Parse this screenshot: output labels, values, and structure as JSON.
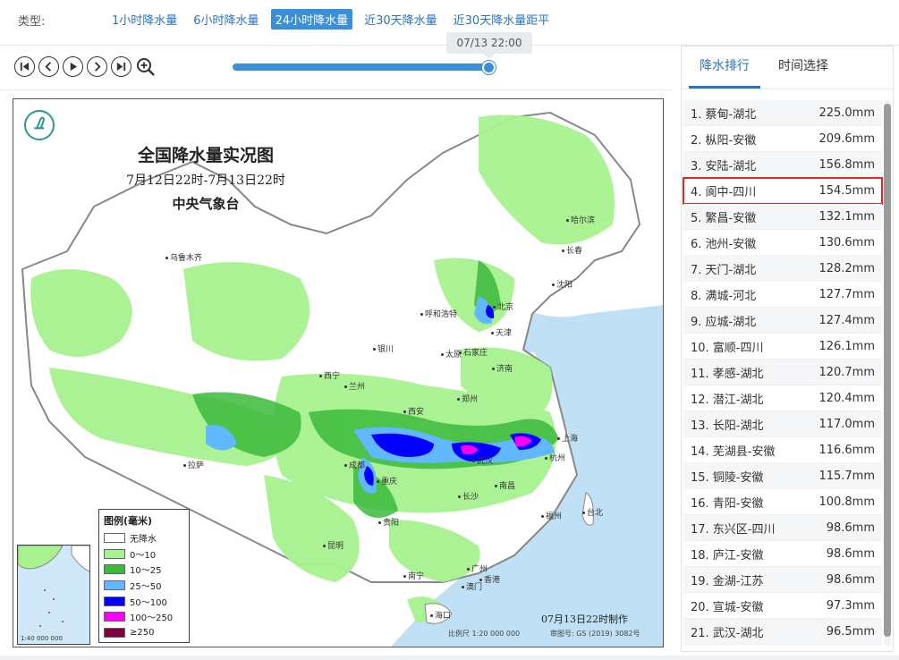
{
  "type_bar": {
    "label": "类型:",
    "tabs": [
      {
        "label": "1小时降水量",
        "active": false
      },
      {
        "label": "6小时降水量",
        "active": false
      },
      {
        "label": "24小时降水量",
        "active": true
      },
      {
        "label": "近30天降水量",
        "active": false
      },
      {
        "label": "近30天降水量距平",
        "active": false
      }
    ]
  },
  "player": {
    "controls": [
      "first-frame-icon",
      "prev-icon",
      "play-icon",
      "next-icon",
      "last-frame-icon",
      "zoom-in-icon"
    ],
    "time_tip": "07/13 22:00",
    "progress": 1.0
  },
  "map": {
    "title": "全国降水量实况图",
    "subtitle": "7月12日22时-7月13日22时",
    "org": "中央气象台",
    "cities": [
      {
        "name": "乌鲁木齐"
      },
      {
        "name": "哈尔滨"
      },
      {
        "name": "长春"
      },
      {
        "name": "沈阳"
      },
      {
        "name": "呼和浩特"
      },
      {
        "name": "北京"
      },
      {
        "name": "天津"
      },
      {
        "name": "石家庄"
      },
      {
        "name": "太原"
      },
      {
        "name": "济南"
      },
      {
        "name": "银川"
      },
      {
        "name": "西宁"
      },
      {
        "name": "兰州"
      },
      {
        "name": "郑州"
      },
      {
        "name": "西安"
      },
      {
        "name": "上海"
      },
      {
        "name": "拉萨"
      },
      {
        "name": "成都"
      },
      {
        "name": "重庆"
      },
      {
        "name": "武汉"
      },
      {
        "name": "杭州"
      },
      {
        "name": "长沙"
      },
      {
        "name": "南昌"
      },
      {
        "name": "福州"
      },
      {
        "name": "台北"
      },
      {
        "name": "贵阳"
      },
      {
        "name": "昆明"
      },
      {
        "name": "南宁"
      },
      {
        "name": "广州"
      },
      {
        "name": "香港"
      },
      {
        "name": "澳门"
      },
      {
        "name": "海口"
      }
    ],
    "legend": {
      "title": "图例(毫米)",
      "items": [
        {
          "label": "无降水",
          "color": "#ffffff"
        },
        {
          "label": "0～10",
          "color": "#a6f28f"
        },
        {
          "label": "10～25",
          "color": "#3dba3d"
        },
        {
          "label": "25～50",
          "color": "#61b8ff"
        },
        {
          "label": "50～100",
          "color": "#0000ff"
        },
        {
          "label": "100～250",
          "color": "#fa00fa"
        },
        {
          "label": "≥250",
          "color": "#800040"
        }
      ]
    },
    "inset_label": "1:40 000 000",
    "made_time": "07月13日22时制作",
    "scale": "比例尺 1:20 000 000",
    "approval": "审图号: GS (2019) 3082号"
  },
  "panel": {
    "tabs": [
      {
        "label": "降水排行",
        "active": true
      },
      {
        "label": "时间选择",
        "active": false
      }
    ],
    "ranking": [
      {
        "station": "1. 蔡甸-湖北",
        "value": "225.0mm"
      },
      {
        "station": "2. 枞阳-安徽",
        "value": "209.6mm"
      },
      {
        "station": "3. 安陆-湖北",
        "value": "156.8mm"
      },
      {
        "station": "4. 阆中-四川",
        "value": "154.5mm",
        "highlight": true
      },
      {
        "station": "5. 繁昌-安徽",
        "value": "132.1mm"
      },
      {
        "station": "6. 池州-安徽",
        "value": "130.6mm"
      },
      {
        "station": "7. 天门-湖北",
        "value": "128.2mm"
      },
      {
        "station": "8. 满城-河北",
        "value": "127.7mm"
      },
      {
        "station": "9. 应城-湖北",
        "value": "127.4mm"
      },
      {
        "station": "10. 富顺-四川",
        "value": "126.1mm"
      },
      {
        "station": "11. 孝感-湖北",
        "value": "120.7mm"
      },
      {
        "station": "12. 潜江-湖北",
        "value": "120.4mm"
      },
      {
        "station": "13. 长阳-湖北",
        "value": "117.0mm"
      },
      {
        "station": "14. 芜湖县-安徽",
        "value": "116.6mm"
      },
      {
        "station": "15. 铜陵-安徽",
        "value": "115.7mm"
      },
      {
        "station": "16. 青阳-安徽",
        "value": "100.8mm"
      },
      {
        "station": "17. 东兴区-四川",
        "value": "98.6mm"
      },
      {
        "station": "18. 庐江-安徽",
        "value": "98.6mm"
      },
      {
        "station": "19. 金湖-江苏",
        "value": "98.6mm"
      },
      {
        "station": "20. 宣城-安徽",
        "value": "97.3mm"
      },
      {
        "station": "21. 武汉-湖北",
        "value": "96.5mm"
      }
    ]
  }
}
